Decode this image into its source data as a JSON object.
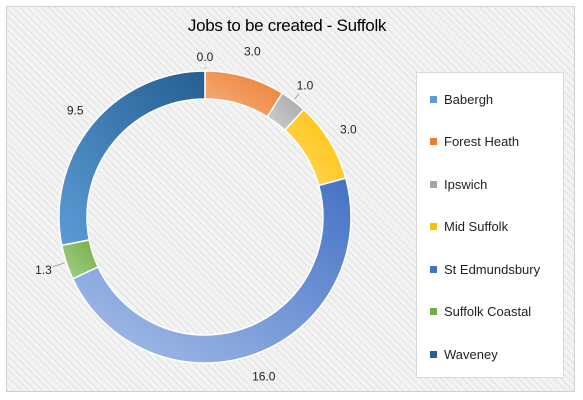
{
  "chart_data": {
    "type": "pie",
    "subtype": "donut",
    "title": "Jobs to be created - Suffolk",
    "legend_position": "right",
    "categories": [
      "Babergh",
      "Forest Heath",
      "Ipswich",
      "Mid Suffolk",
      "St Edmundsbury",
      "Suffolk Coastal",
      "Waveney"
    ],
    "values": [
      0.0,
      3.0,
      1.0,
      3.0,
      16.0,
      1.3,
      9.5
    ],
    "data_labels": [
      "0.0",
      "3.0",
      "1.0",
      "3.0",
      "16.0",
      "1.3",
      "9.5"
    ],
    "colors": [
      "#5b9bd5",
      "#ed7d31",
      "#a5a5a5",
      "#ffc000",
      "#4472c4",
      "#70ad47",
      "#255e91"
    ],
    "gradient_light": [
      "#9dc3e6",
      "#f4b183",
      "#d0d0d0",
      "#ffd966",
      "#a9c0ea",
      "#a9d18e",
      "#5b9bd5"
    ]
  }
}
